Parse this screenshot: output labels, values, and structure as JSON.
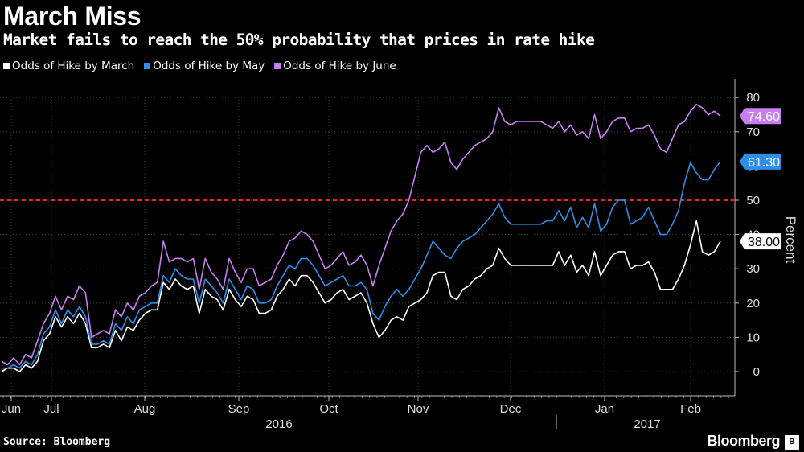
{
  "title": "March Miss",
  "subtitle": "Market fails to reach the 50% probability that prices in rate hike",
  "source": "Source: Bloomberg",
  "brand": "Bloomberg",
  "brand_badge": "B",
  "colors": {
    "march": "#ffffff",
    "may": "#2f8ee8",
    "june": "#c77ff0",
    "threshold": "#e8262b",
    "grid": "#555555",
    "background": "#000000"
  },
  "chart_data": {
    "type": "line",
    "ylabel": "Percent",
    "ylim": [
      -7,
      83
    ],
    "yticks": [
      0,
      10,
      20,
      30,
      40,
      50,
      60,
      70,
      80
    ],
    "grid": true,
    "legend_position": "top-left",
    "months": [
      "Jun",
      "Jul",
      "Aug",
      "Sep",
      "Oct",
      "Nov",
      "Dec",
      "Jan",
      "Feb"
    ],
    "years": [
      "2016",
      "2017"
    ],
    "threshold": 50,
    "series": [
      {
        "name": "Odds of Hike by March",
        "color": "#ffffff",
        "last_label": "38.00",
        "values": [
          0,
          1,
          1,
          0,
          2,
          1,
          3,
          9,
          11,
          16,
          13,
          16,
          14,
          17,
          14,
          7,
          7,
          8,
          7,
          12,
          9,
          13,
          12,
          15,
          17,
          18,
          18,
          26,
          24,
          27,
          25,
          24,
          25,
          17,
          24,
          22,
          21,
          18,
          24,
          21,
          19,
          22,
          21,
          17,
          17,
          18,
          22,
          24,
          27,
          25,
          28,
          28,
          26,
          23,
          20,
          21,
          23,
          24,
          21,
          22,
          23,
          20,
          14,
          10,
          12,
          15,
          16,
          15,
          19,
          20,
          21,
          23,
          28,
          29,
          29,
          22,
          21,
          24,
          25,
          27,
          28,
          30,
          31,
          36,
          33,
          31,
          31,
          31,
          31,
          31,
          31,
          31,
          31,
          35,
          31,
          34,
          29,
          31,
          28,
          35,
          28,
          31,
          34,
          35,
          35,
          30,
          31,
          31,
          32,
          29,
          24,
          24,
          24,
          27,
          31,
          37,
          44,
          35,
          34,
          35,
          38
        ]
      },
      {
        "name": "Odds of Hike by May",
        "color": "#2f8ee8",
        "last_label": "61.30",
        "values": [
          1,
          1,
          2,
          1,
          3,
          2,
          5,
          11,
          13,
          18,
          14,
          18,
          16,
          19,
          16,
          8,
          8,
          9,
          8,
          14,
          12,
          16,
          14,
          18,
          19,
          20,
          20,
          28,
          26,
          30,
          28,
          27,
          27,
          20,
          27,
          25,
          23,
          20,
          27,
          24,
          21,
          25,
          24,
          20,
          20,
          21,
          25,
          28,
          31,
          30,
          33,
          33,
          31,
          28,
          25,
          26,
          27,
          28,
          25,
          25,
          26,
          24,
          17,
          15,
          19,
          22,
          24,
          22,
          24,
          27,
          30,
          34,
          38,
          36,
          34,
          33,
          36,
          38,
          39,
          40,
          42,
          44,
          46,
          49,
          45,
          43,
          43,
          43,
          43,
          43,
          43,
          44,
          44,
          47,
          44,
          48,
          42,
          45,
          42,
          49,
          41,
          43,
          48,
          50,
          50,
          43,
          44,
          45,
          48,
          44,
          40,
          40,
          43,
          47,
          55,
          61,
          58,
          56,
          56,
          59,
          61.3
        ]
      },
      {
        "name": "Odds of Hike by June",
        "color": "#c77ff0",
        "last_label": "74.60",
        "values": [
          3,
          2,
          4,
          2,
          5,
          4,
          9,
          14,
          17,
          22,
          18,
          22,
          21,
          25,
          23,
          10,
          11,
          12,
          11,
          18,
          16,
          20,
          18,
          22,
          23,
          25,
          26,
          38,
          32,
          33,
          33,
          32,
          33,
          24,
          33,
          29,
          27,
          24,
          33,
          29,
          26,
          30,
          30,
          25,
          26,
          27,
          31,
          34,
          38,
          39,
          41,
          40,
          38,
          34,
          30,
          31,
          33,
          35,
          31,
          32,
          34,
          31,
          25,
          31,
          36,
          41,
          44,
          46,
          50,
          57,
          64,
          66,
          64,
          65,
          67,
          61,
          59,
          62,
          64,
          66,
          67,
          68,
          70,
          77,
          73,
          72,
          73,
          73,
          73,
          73,
          73,
          72,
          71,
          73,
          70,
          72,
          69,
          70,
          68,
          75,
          68,
          70,
          73,
          74,
          74,
          70,
          71,
          71,
          72,
          69,
          65,
          64,
          68,
          72,
          73,
          76,
          78,
          77,
          75,
          76,
          74.6
        ]
      }
    ]
  }
}
